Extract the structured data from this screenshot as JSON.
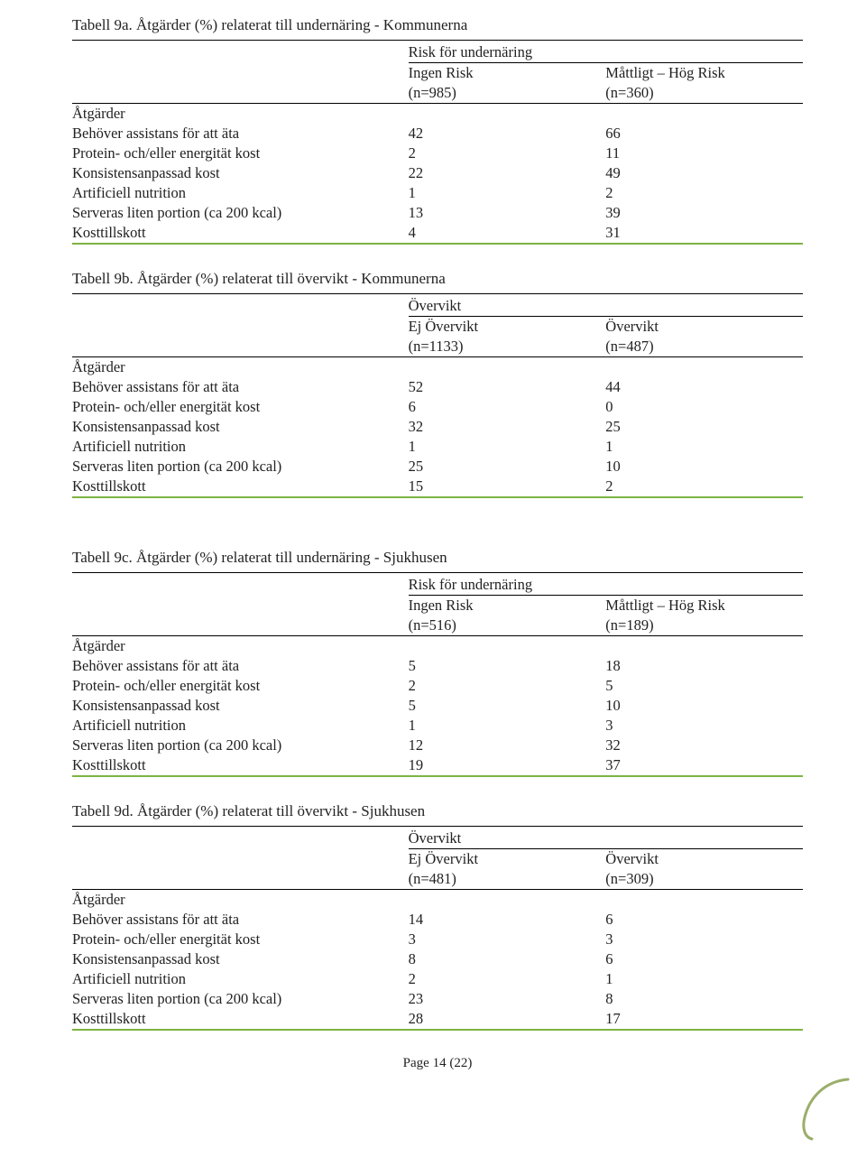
{
  "tables": [
    {
      "title": "Tabell 9a. Åtgärder (%) relaterat till undernäring - Kommunerna",
      "group_label": "Risk för undernäring",
      "col_a": "Ingen Risk",
      "col_a_n": "(n=985)",
      "col_b": "Måttligt – Hög Risk",
      "col_b_n": "(n=360)",
      "row_header": "Åtgärder",
      "rows": [
        {
          "label": "Behöver assistans för att äta",
          "a": "42",
          "b": "66"
        },
        {
          "label": "Protein- och/eller energität kost",
          "a": "2",
          "b": "11"
        },
        {
          "label": "Konsistensanpassad kost",
          "a": "22",
          "b": "49"
        },
        {
          "label": "Artificiell nutrition",
          "a": "1",
          "b": "2"
        },
        {
          "label": "Serveras liten portion (ca 200 kcal)",
          "a": "13",
          "b": "39"
        },
        {
          "label": "Kosttillskott",
          "a": "4",
          "b": "31"
        }
      ]
    },
    {
      "title": "Tabell 9b. Åtgärder (%) relaterat till övervikt - Kommunerna",
      "group_label": "Övervikt",
      "col_a": "Ej Övervikt",
      "col_a_n": "(n=1133)",
      "col_b": "Övervikt",
      "col_b_n": "(n=487)",
      "row_header": "Åtgärder",
      "rows": [
        {
          "label": "Behöver assistans för att äta",
          "a": "52",
          "b": "44"
        },
        {
          "label": "Protein- och/eller energität kost",
          "a": "6",
          "b": "0"
        },
        {
          "label": "Konsistensanpassad kost",
          "a": "32",
          "b": "25"
        },
        {
          "label": "Artificiell nutrition",
          "a": "1",
          "b": "1"
        },
        {
          "label": "Serveras liten portion (ca 200 kcal)",
          "a": "25",
          "b": "10"
        },
        {
          "label": "Kosttillskott",
          "a": "15",
          "b": "2"
        }
      ]
    },
    {
      "title": "Tabell 9c. Åtgärder (%) relaterat till undernäring - Sjukhusen",
      "group_label": "Risk för undernäring",
      "col_a": "Ingen Risk",
      "col_a_n": "(n=516)",
      "col_b": "Måttligt – Hög Risk",
      "col_b_n": "(n=189)",
      "row_header": "Åtgärder",
      "rows": [
        {
          "label": "Behöver assistans för att äta",
          "a": "5",
          "b": "18"
        },
        {
          "label": "Protein- och/eller energität kost",
          "a": "2",
          "b": "5"
        },
        {
          "label": "Konsistensanpassad kost",
          "a": "5",
          "b": "10"
        },
        {
          "label": "Artificiell nutrition",
          "a": "1",
          "b": "3"
        },
        {
          "label": "Serveras liten portion (ca 200 kcal)",
          "a": "12",
          "b": "32"
        },
        {
          "label": "Kosttillskott",
          "a": "19",
          "b": "37"
        }
      ]
    },
    {
      "title": "Tabell 9d. Åtgärder (%) relaterat till övervikt - Sjukhusen",
      "group_label": "Övervikt",
      "col_a": "Ej Övervikt",
      "col_a_n": "(n=481)",
      "col_b": "Övervikt",
      "col_b_n": "(n=309)",
      "row_header": "Åtgärder",
      "rows": [
        {
          "label": "Behöver assistans för att äta",
          "a": "14",
          "b": "6"
        },
        {
          "label": "Protein- och/eller energität kost",
          "a": "3",
          "b": "3"
        },
        {
          "label": "Konsistensanpassad kost",
          "a": "8",
          "b": "6"
        },
        {
          "label": "Artificiell nutrition",
          "a": "2",
          "b": "1"
        },
        {
          "label": "Serveras liten portion (ca 200 kcal)",
          "a": "23",
          "b": "8"
        },
        {
          "label": "Kosttillskott",
          "a": "28",
          "b": "17"
        }
      ]
    }
  ],
  "gap_after_index": 1,
  "page_number": "Page 14 (22)",
  "colors": {
    "accent_green": "#7cb342",
    "text": "#222222",
    "rule": "#000000",
    "swoosh": "#9aae6a"
  }
}
